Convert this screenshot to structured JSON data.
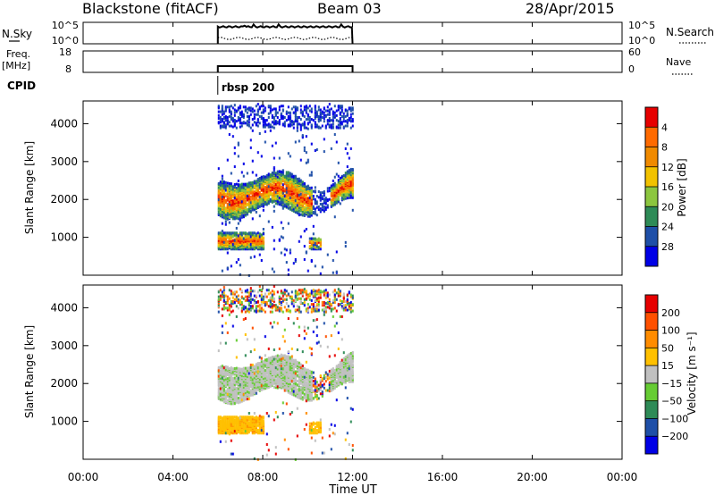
{
  "header": {
    "station": "Blackstone (fitACF)",
    "beam": "Beam 03",
    "date": "28/Apr/2015"
  },
  "noise_panel": {
    "left_label": "N.Sky",
    "right_label": "N.Search",
    "left_ticks": [
      "10^5",
      "10^0"
    ],
    "right_ticks": [
      "10^5",
      "10^0"
    ]
  },
  "freq_panel": {
    "left_label_1": "Freq.",
    "left_label_2": "[MHz]",
    "right_label": "Nave",
    "left_ticks": [
      "18",
      "8"
    ],
    "right_ticks": [
      "60",
      "0"
    ]
  },
  "cpid": {
    "label": "CPID",
    "program": "rbsp 200"
  },
  "chart_data": [
    {
      "type": "heatmap",
      "name": "power",
      "ylabel": "Slant Range [km]",
      "ylim": [
        0,
        4600
      ],
      "yticks": [
        "1000",
        "2000",
        "3000",
        "4000"
      ],
      "colorbar_label": "Power [dB]",
      "colorbar_ticks": [
        "4",
        "8",
        "12",
        "16",
        "20",
        "24",
        "28"
      ],
      "colors": [
        "#0000e6",
        "#1e4fa8",
        "#2e8b57",
        "#8cc63f",
        "#f2c200",
        "#f08a00",
        "#ff6a00",
        "#e60000"
      ],
      "data_time_range_hours": [
        6,
        12
      ]
    },
    {
      "type": "heatmap",
      "name": "velocity",
      "ylabel": "Slant Range [km]",
      "ylim": [
        0,
        4600
      ],
      "yticks": [
        "1000",
        "2000",
        "3000",
        "4000"
      ],
      "colorbar_label": "Velocity [m s⁻¹]",
      "colorbar_ticks": [
        "200",
        "100",
        "50",
        "15",
        "−15",
        "−50",
        "−100",
        "−200"
      ],
      "colors": [
        "#0000e6",
        "#1e4fa8",
        "#2e8b57",
        "#66cc33",
        "#c0c0c0",
        "#ffc000",
        "#ff8c00",
        "#ff5000",
        "#e60000"
      ],
      "data_time_range_hours": [
        6,
        12
      ]
    }
  ],
  "time_axis": {
    "label": "Time UT",
    "range_hours": [
      0,
      24
    ],
    "ticks": [
      "00:00",
      "04:00",
      "08:00",
      "12:00",
      "16:00",
      "20:00",
      "00:00"
    ]
  }
}
